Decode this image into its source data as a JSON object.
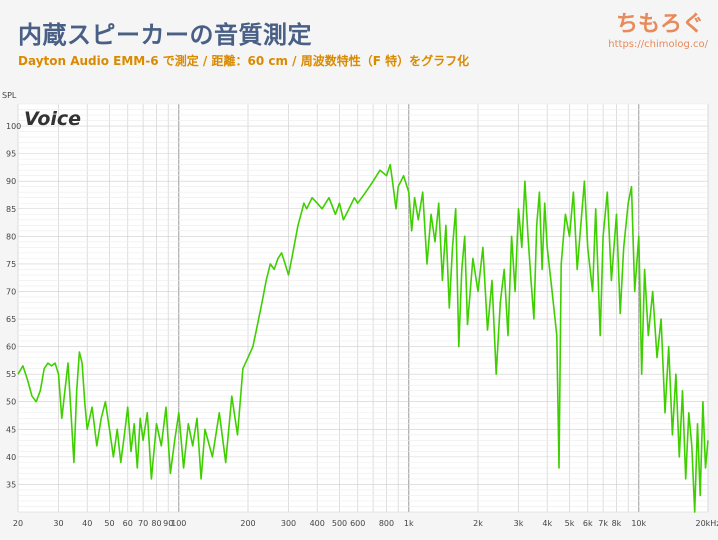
{
  "header": {
    "title": "内蔵スピーカーの音質測定",
    "subtitle": "Dayton Audio EMM-6 で測定 / 距離：60 cm / 周波数特性（F 特）をグラフ化",
    "brand": "ちもろぐ",
    "brand_url": "https://chimolog.co/"
  },
  "chart_data": {
    "type": "line",
    "title": "Voice",
    "ylabel": "SPL",
    "xscale": "log",
    "xlim": [
      20,
      20000
    ],
    "ylim": [
      30,
      104
    ],
    "grid": true,
    "x_tick_labels": [
      {
        "v": 20,
        "t": "20"
      },
      {
        "v": 30,
        "t": "30"
      },
      {
        "v": 40,
        "t": "40"
      },
      {
        "v": 50,
        "t": "50"
      },
      {
        "v": 60,
        "t": "60"
      },
      {
        "v": 70,
        "t": "70"
      },
      {
        "v": 80,
        "t": "80"
      },
      {
        "v": 90,
        "t": "90"
      },
      {
        "v": 100,
        "t": "100"
      },
      {
        "v": 200,
        "t": "200"
      },
      {
        "v": 300,
        "t": "300"
      },
      {
        "v": 400,
        "t": "400"
      },
      {
        "v": 500,
        "t": "500"
      },
      {
        "v": 600,
        "t": "600"
      },
      {
        "v": 800,
        "t": "800"
      },
      {
        "v": 1000,
        "t": "1k"
      },
      {
        "v": 2000,
        "t": "2k"
      },
      {
        "v": 3000,
        "t": "3k"
      },
      {
        "v": 4000,
        "t": "4k"
      },
      {
        "v": 5000,
        "t": "5k"
      },
      {
        "v": 6000,
        "t": "6k"
      },
      {
        "v": 7000,
        "t": "7k"
      },
      {
        "v": 8000,
        "t": "8k"
      },
      {
        "v": 10000,
        "t": "10k"
      },
      {
        "v": 20000,
        "t": "20kHz"
      }
    ],
    "y_ticks": [
      35,
      40,
      45,
      50,
      55,
      60,
      65,
      70,
      75,
      80,
      85,
      90,
      95,
      100
    ],
    "series": [
      {
        "color": "#3fcf00",
        "points": [
          [
            20,
            55
          ],
          [
            21,
            56.5
          ],
          [
            22,
            54
          ],
          [
            23,
            51
          ],
          [
            24,
            50
          ],
          [
            25,
            52
          ],
          [
            26,
            56
          ],
          [
            27,
            57
          ],
          [
            28,
            56.5
          ],
          [
            29,
            57
          ],
          [
            30,
            55
          ],
          [
            31,
            47
          ],
          [
            32,
            52
          ],
          [
            33,
            57
          ],
          [
            34,
            48
          ],
          [
            35,
            39
          ],
          [
            36,
            52
          ],
          [
            37,
            59
          ],
          [
            38,
            57
          ],
          [
            39,
            50
          ],
          [
            40,
            45
          ],
          [
            42,
            49
          ],
          [
            44,
            42
          ],
          [
            46,
            47
          ],
          [
            48,
            50
          ],
          [
            50,
            45
          ],
          [
            52,
            40
          ],
          [
            54,
            45
          ],
          [
            56,
            39
          ],
          [
            58,
            44
          ],
          [
            60,
            49
          ],
          [
            62,
            41
          ],
          [
            64,
            46
          ],
          [
            66,
            38
          ],
          [
            68,
            47
          ],
          [
            70,
            43
          ],
          [
            73,
            48
          ],
          [
            76,
            36
          ],
          [
            80,
            46
          ],
          [
            84,
            42
          ],
          [
            88,
            49
          ],
          [
            92,
            37
          ],
          [
            96,
            43
          ],
          [
            100,
            48
          ],
          [
            105,
            38
          ],
          [
            110,
            46
          ],
          [
            115,
            42
          ],
          [
            120,
            47
          ],
          [
            125,
            36
          ],
          [
            130,
            45
          ],
          [
            140,
            40
          ],
          [
            150,
            48
          ],
          [
            160,
            39
          ],
          [
            170,
            51
          ],
          [
            180,
            44
          ],
          [
            190,
            56
          ],
          [
            200,
            58
          ],
          [
            210,
            60
          ],
          [
            220,
            64
          ],
          [
            230,
            68
          ],
          [
            240,
            72
          ],
          [
            250,
            75
          ],
          [
            260,
            74
          ],
          [
            270,
            76
          ],
          [
            280,
            77
          ],
          [
            290,
            75
          ],
          [
            300,
            73
          ],
          [
            310,
            76
          ],
          [
            320,
            79
          ],
          [
            330,
            82
          ],
          [
            340,
            84
          ],
          [
            350,
            86
          ],
          [
            360,
            85
          ],
          [
            380,
            87
          ],
          [
            400,
            86
          ],
          [
            420,
            85
          ],
          [
            450,
            87
          ],
          [
            480,
            84
          ],
          [
            500,
            86
          ],
          [
            520,
            83
          ],
          [
            550,
            85
          ],
          [
            580,
            87
          ],
          [
            600,
            86
          ],
          [
            650,
            88
          ],
          [
            700,
            90
          ],
          [
            750,
            92
          ],
          [
            800,
            91
          ],
          [
            830,
            93
          ],
          [
            850,
            90
          ],
          [
            880,
            85
          ],
          [
            900,
            89
          ],
          [
            950,
            91
          ],
          [
            1000,
            88
          ],
          [
            1030,
            81
          ],
          [
            1060,
            87
          ],
          [
            1100,
            83
          ],
          [
            1150,
            88
          ],
          [
            1200,
            75
          ],
          [
            1250,
            84
          ],
          [
            1300,
            79
          ],
          [
            1350,
            86
          ],
          [
            1400,
            72
          ],
          [
            1450,
            82
          ],
          [
            1500,
            67
          ],
          [
            1550,
            78
          ],
          [
            1600,
            85
          ],
          [
            1650,
            60
          ],
          [
            1700,
            74
          ],
          [
            1750,
            80
          ],
          [
            1800,
            64
          ],
          [
            1900,
            76
          ],
          [
            2000,
            70
          ],
          [
            2100,
            78
          ],
          [
            2200,
            63
          ],
          [
            2300,
            72
          ],
          [
            2400,
            55
          ],
          [
            2500,
            68
          ],
          [
            2600,
            74
          ],
          [
            2700,
            62
          ],
          [
            2800,
            80
          ],
          [
            2900,
            70
          ],
          [
            3000,
            85
          ],
          [
            3100,
            78
          ],
          [
            3200,
            90
          ],
          [
            3300,
            80
          ],
          [
            3400,
            72
          ],
          [
            3500,
            65
          ],
          [
            3600,
            82
          ],
          [
            3700,
            88
          ],
          [
            3800,
            74
          ],
          [
            3900,
            86
          ],
          [
            4000,
            78
          ],
          [
            4200,
            70
          ],
          [
            4400,
            62
          ],
          [
            4500,
            38
          ],
          [
            4600,
            75
          ],
          [
            4800,
            84
          ],
          [
            5000,
            80
          ],
          [
            5200,
            88
          ],
          [
            5400,
            74
          ],
          [
            5600,
            82
          ],
          [
            5800,
            90
          ],
          [
            6000,
            78
          ],
          [
            6300,
            70
          ],
          [
            6500,
            85
          ],
          [
            6800,
            62
          ],
          [
            7000,
            80
          ],
          [
            7300,
            88
          ],
          [
            7600,
            72
          ],
          [
            8000,
            84
          ],
          [
            8300,
            66
          ],
          [
            8600,
            78
          ],
          [
            9000,
            86
          ],
          [
            9300,
            89
          ],
          [
            9600,
            70
          ],
          [
            10000,
            80
          ],
          [
            10300,
            55
          ],
          [
            10600,
            74
          ],
          [
            11000,
            62
          ],
          [
            11500,
            70
          ],
          [
            12000,
            58
          ],
          [
            12500,
            65
          ],
          [
            13000,
            48
          ],
          [
            13500,
            60
          ],
          [
            14000,
            44
          ],
          [
            14500,
            55
          ],
          [
            15000,
            40
          ],
          [
            15500,
            52
          ],
          [
            16000,
            36
          ],
          [
            16500,
            48
          ],
          [
            17000,
            42
          ],
          [
            17500,
            30
          ],
          [
            18000,
            46
          ],
          [
            18500,
            33
          ],
          [
            19000,
            50
          ],
          [
            19500,
            38
          ],
          [
            20000,
            43
          ]
        ]
      }
    ]
  }
}
